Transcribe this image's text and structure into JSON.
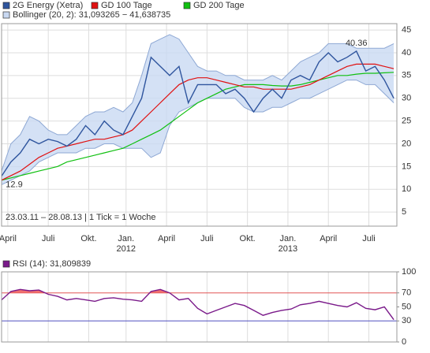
{
  "chart_data": [
    {
      "type": "line",
      "x": [
        0,
        3,
        6,
        9,
        12,
        15,
        18,
        21,
        24,
        27,
        30,
        33,
        36,
        39,
        42,
        45,
        48,
        51,
        54,
        57,
        60,
        63,
        66,
        69,
        72,
        75,
        78,
        81,
        84,
        87,
        90,
        93,
        96,
        99,
        102,
        105,
        108,
        111,
        114,
        117,
        120,
        123,
        126
      ],
      "xlim": [
        0,
        127
      ],
      "xticks": [
        {
          "value": 2,
          "label": "April"
        },
        {
          "value": 15,
          "label": "Juli"
        },
        {
          "value": 28,
          "label": "Okt."
        },
        {
          "value": 40,
          "label": "Jan."
        },
        {
          "value": 53,
          "label": "April"
        },
        {
          "value": 66,
          "label": "Juli"
        },
        {
          "value": 79,
          "label": "Okt."
        },
        {
          "value": 92,
          "label": "Jan."
        },
        {
          "value": 105,
          "label": "April"
        },
        {
          "value": 118,
          "label": "Juli"
        }
      ],
      "year_labels": [
        {
          "value": 40,
          "label": "2012"
        },
        {
          "value": 92,
          "label": "2013"
        }
      ],
      "ylim": [
        1.9,
        46.4
      ],
      "yticks": [
        5,
        10,
        15,
        20,
        25,
        30,
        35,
        40,
        45
      ],
      "grid": true,
      "note": "23.03.11 – 28.08.13 | 1 Tick = 1 Woche",
      "annotations": [
        {
          "label": "12.9",
          "x": 0,
          "value": 12.9
        },
        {
          "label": "40.36",
          "x": 114,
          "value": 40.36
        }
      ],
      "band": {
        "name": "Bollinger (20, 2): 31,093265 − 41,638735",
        "color": "#c9d9f2",
        "line_color": "#8ea8d4",
        "upper": [
          14,
          20,
          22,
          26,
          25,
          23,
          22,
          22,
          24,
          26,
          27,
          27,
          28,
          27,
          29,
          35,
          42,
          43,
          44,
          43,
          40,
          37,
          36,
          36,
          35,
          35,
          34,
          34,
          34,
          35,
          34,
          36,
          38,
          39,
          40,
          42,
          42,
          42,
          41,
          41,
          41,
          41,
          42
        ],
        "lower": [
          11,
          12,
          13,
          14,
          16,
          17,
          18,
          18,
          18,
          19,
          19,
          20,
          20,
          19,
          19,
          19,
          17,
          18,
          24,
          27,
          28,
          29,
          30,
          30,
          30,
          30,
          28,
          27,
          27,
          28,
          28,
          29,
          30,
          30,
          31,
          32,
          33,
          34,
          34,
          33,
          33,
          31,
          29
        ]
      },
      "series": [
        {
          "name": "2G Energy (Xetra)",
          "color": "#2f559e",
          "values": [
            12.9,
            16,
            18,
            21,
            20,
            21,
            20.5,
            19.5,
            21,
            24,
            22,
            25,
            23,
            22,
            26,
            30,
            39,
            37,
            35,
            37,
            29,
            33,
            33,
            33,
            31,
            32,
            30,
            27,
            30,
            32,
            30,
            34,
            35,
            34,
            38,
            40,
            38,
            39,
            40.36,
            36,
            37,
            34,
            30
          ]
        },
        {
          "name": "GD 100 Tage",
          "color": "#e01010",
          "values": [
            12,
            13,
            14,
            15.5,
            17,
            18,
            19,
            19.5,
            20,
            20.5,
            21,
            21,
            21.5,
            22,
            23,
            25,
            27,
            29,
            31,
            33,
            34,
            34.5,
            34.5,
            34,
            33.5,
            33,
            32.5,
            32.5,
            32,
            32,
            32,
            32,
            32.5,
            33,
            34,
            35,
            36,
            37,
            37.5,
            37.5,
            37.5,
            37,
            36.5
          ]
        },
        {
          "name": "GD 200 Tage",
          "color": "#10c010",
          "values": [
            12,
            12.5,
            13,
            13.5,
            14,
            14.5,
            15,
            16,
            16.5,
            17,
            17.5,
            18,
            18.5,
            19,
            20,
            21,
            22,
            23,
            24.5,
            26,
            27.5,
            29,
            30,
            31,
            32,
            32.5,
            33,
            33,
            33,
            32.8,
            32.7,
            32.7,
            33,
            33.5,
            34,
            34.5,
            35,
            35,
            35.3,
            35.5,
            35.5,
            35.6,
            35.7
          ]
        }
      ]
    },
    {
      "type": "line",
      "x": [
        0,
        3,
        6,
        9,
        12,
        15,
        18,
        21,
        24,
        27,
        30,
        33,
        36,
        39,
        42,
        45,
        48,
        51,
        54,
        57,
        60,
        63,
        66,
        69,
        72,
        75,
        78,
        81,
        84,
        87,
        90,
        93,
        96,
        99,
        102,
        105,
        108,
        111,
        114,
        117,
        120,
        123,
        126
      ],
      "xlim": [
        0,
        127
      ],
      "xticks": [
        2,
        15,
        28,
        40,
        53,
        66,
        79,
        92,
        105,
        118
      ],
      "ylim": [
        0,
        100
      ],
      "yticks": [
        0,
        30,
        50,
        70,
        100
      ],
      "ref_lines": [
        {
          "value": 70,
          "color": "#e05050"
        },
        {
          "value": 30,
          "color": "#5050c0"
        }
      ],
      "overbought_color": "#f07070",
      "series": [
        {
          "name": "RSI (14): 31,809839",
          "color": "#7a1a8a",
          "values": [
            60,
            72,
            75,
            73,
            74,
            68,
            65,
            60,
            62,
            60,
            58,
            62,
            63,
            61,
            60,
            58,
            72,
            75,
            70,
            60,
            62,
            48,
            40,
            45,
            50,
            55,
            52,
            45,
            38,
            42,
            45,
            47,
            53,
            55,
            58,
            55,
            52,
            50,
            56,
            48,
            46,
            50,
            31.8
          ]
        }
      ]
    }
  ]
}
